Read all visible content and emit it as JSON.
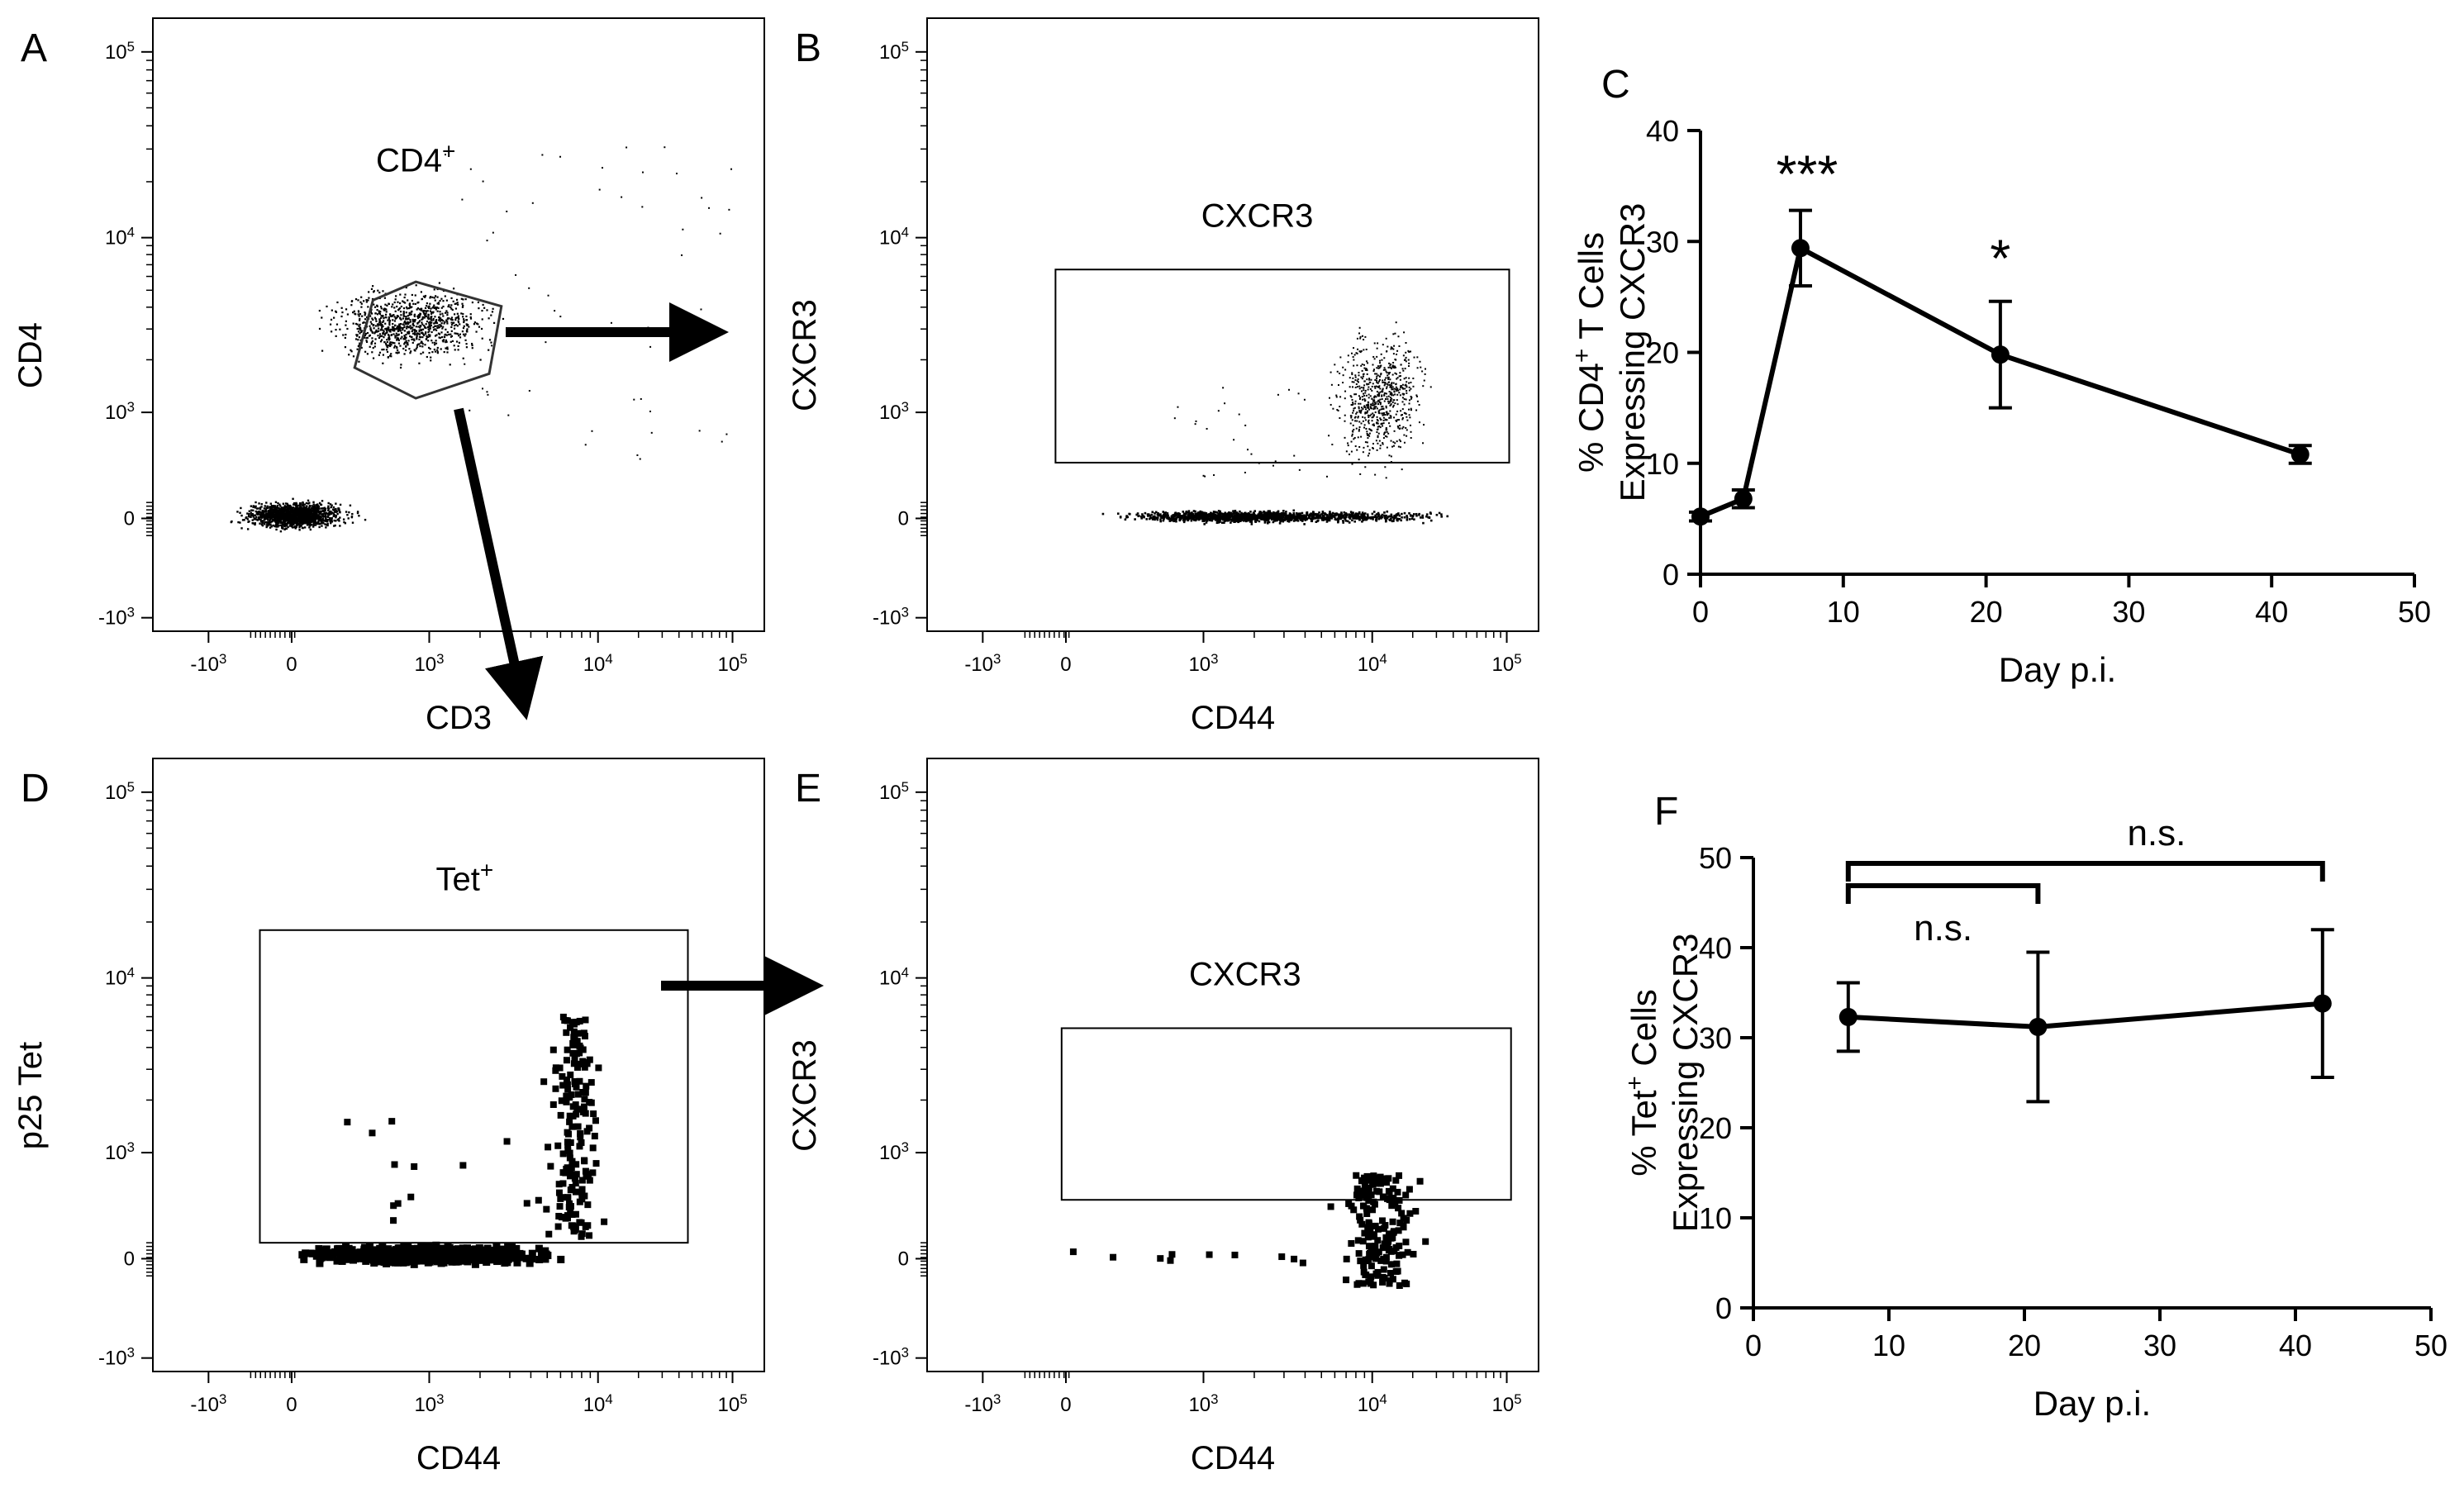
{
  "flow_panels": [
    {
      "id": "A",
      "letter": "A",
      "gate": {
        "label": "CD4",
        "sup": "+",
        "shape": "polygon"
      },
      "xlabel": "CD3",
      "ylabel": "CD4"
    },
    {
      "id": "B",
      "letter": "B",
      "gate": {
        "label": "CXCR3",
        "sup": "",
        "shape": "rectangle"
      },
      "xlabel": "CD44",
      "ylabel": "CXCR3"
    },
    {
      "id": "D",
      "letter": "D",
      "gate": {
        "label": "Tet",
        "sup": "+",
        "shape": "rectangle"
      },
      "xlabel": "CD44",
      "ylabel": "p25 Tet"
    },
    {
      "id": "E",
      "letter": "E",
      "gate": {
        "label": "CXCR3",
        "sup": "",
        "shape": "rectangle"
      },
      "xlabel": "CD44",
      "ylabel": "CXCR3"
    }
  ],
  "flow_tick_labels": {
    "x": [
      {
        "base": "-10",
        "exp": "3"
      },
      {
        "base": "0",
        "exp": ""
      },
      {
        "base": "10",
        "exp": "3"
      },
      {
        "base": "10",
        "exp": "4"
      },
      {
        "base": "10",
        "exp": "5"
      }
    ],
    "y": [
      {
        "base": "10",
        "exp": "5"
      },
      {
        "base": "10",
        "exp": "4"
      },
      {
        "base": "10",
        "exp": "3"
      },
      {
        "base": "0",
        "exp": ""
      },
      {
        "base": "-10",
        "exp": "3"
      }
    ]
  },
  "chart_data": [
    {
      "type": "line",
      "panel": "C",
      "letter": "C",
      "x": [
        0,
        3,
        7,
        21,
        42
      ],
      "y": [
        5.2,
        6.8,
        29.4,
        19.8,
        10.8
      ],
      "error": [
        0.4,
        0.8,
        3.4,
        4.8,
        0.8
      ],
      "xlabel": "Day p.i.",
      "ylabel_line1_prefix": "% CD4",
      "ylabel_line1_sup": "+",
      "ylabel_line1_suffix": " T Cells",
      "ylabel_line2": "Expressing CXCR3",
      "xlim": [
        0,
        50
      ],
      "ylim": [
        0,
        40
      ],
      "xticks": [
        0,
        10,
        20,
        30,
        40,
        50
      ],
      "yticks": [
        0,
        10,
        20,
        30,
        40
      ],
      "annotations": [
        {
          "text": "***",
          "x": 7
        },
        {
          "text": "*",
          "x": 21
        }
      ]
    },
    {
      "type": "line",
      "panel": "F",
      "letter": "F",
      "x": [
        7,
        21,
        42
      ],
      "y": [
        32.3,
        31.2,
        33.8
      ],
      "error": [
        3.8,
        8.3,
        8.2
      ],
      "xlabel": "Day p.i.",
      "ylabel_line1_prefix": "% Tet",
      "ylabel_line1_sup": "+",
      "ylabel_line1_suffix": " Cells",
      "ylabel_line2": "Expressing CXCR3",
      "xlim": [
        0,
        50
      ],
      "ylim": [
        0,
        50
      ],
      "xticks": [
        0,
        10,
        20,
        30,
        40,
        50
      ],
      "yticks": [
        0,
        10,
        20,
        30,
        40,
        50
      ],
      "comparisons": [
        {
          "from": 7,
          "to": 21,
          "label": "n.s."
        },
        {
          "from": 7,
          "to": 42,
          "label": "n.s."
        }
      ]
    }
  ]
}
